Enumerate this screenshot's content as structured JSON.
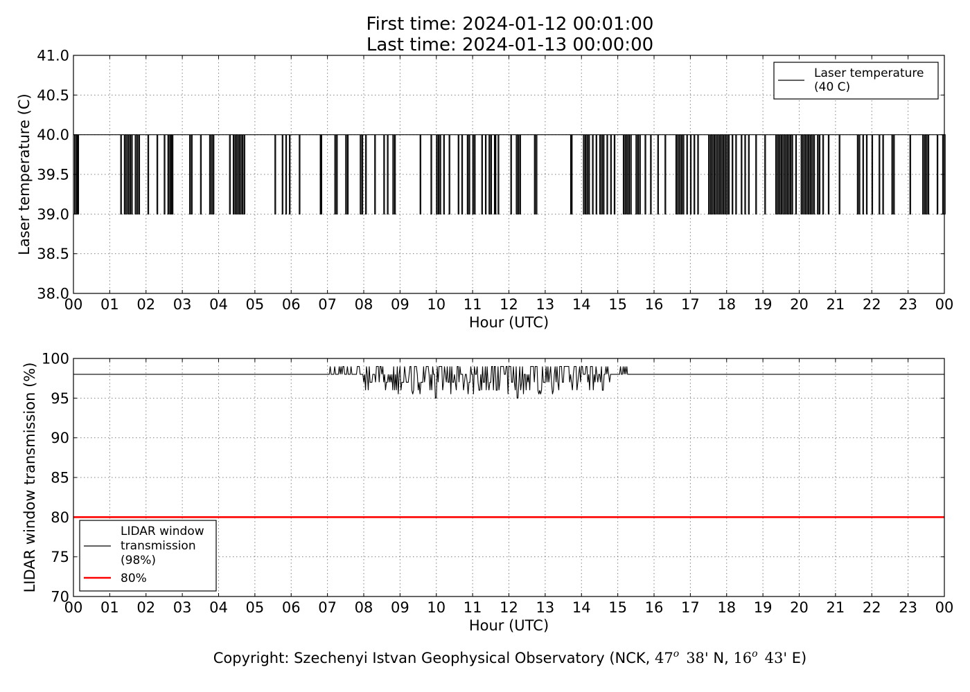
{
  "title_lines": [
    "First time: 2024-01-12 00:01:00",
    "Last time: 2024-01-13 00:00:00"
  ],
  "copyright": {
    "prefix": "Copyright: Szechenyi Istvan Geophysical Observatory (NCK, ",
    "lat_deg": "47",
    "deg_mark": "o",
    "lat_min": "38'",
    "lat_hem": " N, ",
    "lon_deg": "16",
    "lon_min": "43'",
    "lon_hem": " E)"
  },
  "colors": {
    "series": "#000000",
    "threshold": "#ff0000",
    "grid": "#808080"
  },
  "chart_data": [
    {
      "type": "line",
      "xlabel": "Hour (UTC)",
      "ylabel": "Laser temperature (C)",
      "xlim": [
        0,
        24
      ],
      "ylim": [
        38.0,
        41.0
      ],
      "x_ticks": [
        0,
        1,
        2,
        3,
        4,
        5,
        6,
        7,
        8,
        9,
        10,
        11,
        12,
        13,
        14,
        15,
        16,
        17,
        18,
        19,
        20,
        21,
        22,
        23,
        24
      ],
      "x_tick_labels": [
        "00",
        "01",
        "02",
        "03",
        "04",
        "05",
        "06",
        "07",
        "08",
        "09",
        "10",
        "11",
        "12",
        "13",
        "14",
        "15",
        "16",
        "17",
        "18",
        "19",
        "20",
        "21",
        "22",
        "23",
        "00"
      ],
      "y_ticks": [
        38.0,
        38.5,
        39.0,
        39.5,
        40.0,
        40.5,
        41.0
      ],
      "y_tick_labels": [
        "38.0",
        "38.5",
        "39.0",
        "39.5",
        "40.0",
        "40.5",
        "41.0"
      ],
      "grid": true,
      "legend_position": "top-right",
      "series": [
        {
          "name": "Laser temperature\n(40 C)",
          "color": "#000000",
          "baseline": 40.0,
          "dip_value": 39.0,
          "dips_at_hours": [
            0.03,
            0.08,
            0.1,
            0.12,
            1.3,
            1.4,
            1.45,
            1.5,
            1.55,
            1.6,
            1.7,
            1.75,
            1.8,
            2.05,
            2.3,
            2.5,
            2.6,
            2.65,
            2.68,
            2.72,
            3.2,
            3.25,
            3.5,
            3.75,
            3.8,
            3.85,
            4.3,
            4.4,
            4.45,
            4.5,
            4.55,
            4.6,
            4.65,
            4.7,
            5.55,
            5.75,
            5.85,
            5.95,
            6.22,
            6.8,
            6.82,
            7.2,
            7.25,
            7.5,
            7.55,
            7.9,
            7.95,
            8.05,
            8.3,
            8.55,
            8.65,
            8.8,
            8.85,
            9.55,
            9.85,
            10.0,
            10.05,
            10.1,
            10.2,
            10.35,
            10.6,
            10.7,
            10.85,
            10.9,
            11.0,
            11.05,
            11.25,
            11.35,
            11.45,
            11.5,
            11.6,
            11.62,
            11.7,
            12.05,
            12.2,
            12.25,
            12.3,
            12.7,
            12.75,
            13.7,
            13.72,
            14.05,
            14.1,
            14.15,
            14.2,
            14.3,
            14.4,
            14.5,
            14.55,
            14.6,
            14.7,
            14.8,
            14.9,
            15.15,
            15.2,
            15.25,
            15.3,
            15.35,
            15.5,
            15.55,
            15.6,
            15.75,
            15.9,
            16.1,
            16.3,
            16.6,
            16.65,
            16.7,
            16.75,
            16.8,
            16.9,
            17.0,
            17.1,
            17.2,
            17.5,
            17.55,
            17.6,
            17.65,
            17.7,
            17.75,
            17.8,
            17.85,
            17.9,
            17.95,
            18.0,
            18.05,
            18.15,
            18.25,
            18.4,
            18.5,
            18.6,
            18.8,
            19.05,
            19.35,
            19.4,
            19.45,
            19.5,
            19.55,
            19.6,
            19.65,
            19.7,
            19.75,
            19.8,
            19.9,
            20.05,
            20.1,
            20.15,
            20.2,
            20.25,
            20.3,
            20.35,
            20.4,
            20.5,
            20.55,
            20.65,
            20.8,
            21.1,
            21.6,
            21.65,
            21.75,
            21.85,
            22.0,
            22.2,
            22.3,
            22.55,
            22.6,
            23.05,
            23.4,
            23.45,
            23.5,
            23.55,
            23.8,
            23.95,
            24.0
          ]
        }
      ]
    },
    {
      "type": "line",
      "xlabel": "Hour (UTC)",
      "ylabel": "LIDAR window transmission (%)",
      "xlim": [
        0,
        24
      ],
      "ylim": [
        70,
        100
      ],
      "x_ticks": [
        0,
        1,
        2,
        3,
        4,
        5,
        6,
        7,
        8,
        9,
        10,
        11,
        12,
        13,
        14,
        15,
        16,
        17,
        18,
        19,
        20,
        21,
        22,
        23,
        24
      ],
      "x_tick_labels": [
        "00",
        "01",
        "02",
        "03",
        "04",
        "05",
        "06",
        "07",
        "08",
        "09",
        "10",
        "11",
        "12",
        "13",
        "14",
        "15",
        "16",
        "17",
        "18",
        "19",
        "20",
        "21",
        "22",
        "23",
        "00"
      ],
      "y_ticks": [
        70,
        75,
        80,
        85,
        90,
        95,
        100
      ],
      "y_tick_labels": [
        "70",
        "75",
        "80",
        "85",
        "90",
        "95",
        "100"
      ],
      "grid": true,
      "legend_position": "bottom-left",
      "series": [
        {
          "name": "LIDAR window\ntransmission\n(98%)",
          "color": "#000000",
          "baseline": 98,
          "active_range_hours": [
            7.05,
            15.27
          ],
          "extremes": {
            "max": 99,
            "min": 95
          }
        },
        {
          "name": "80%",
          "color": "#ff0000",
          "constant": 80
        }
      ]
    }
  ]
}
